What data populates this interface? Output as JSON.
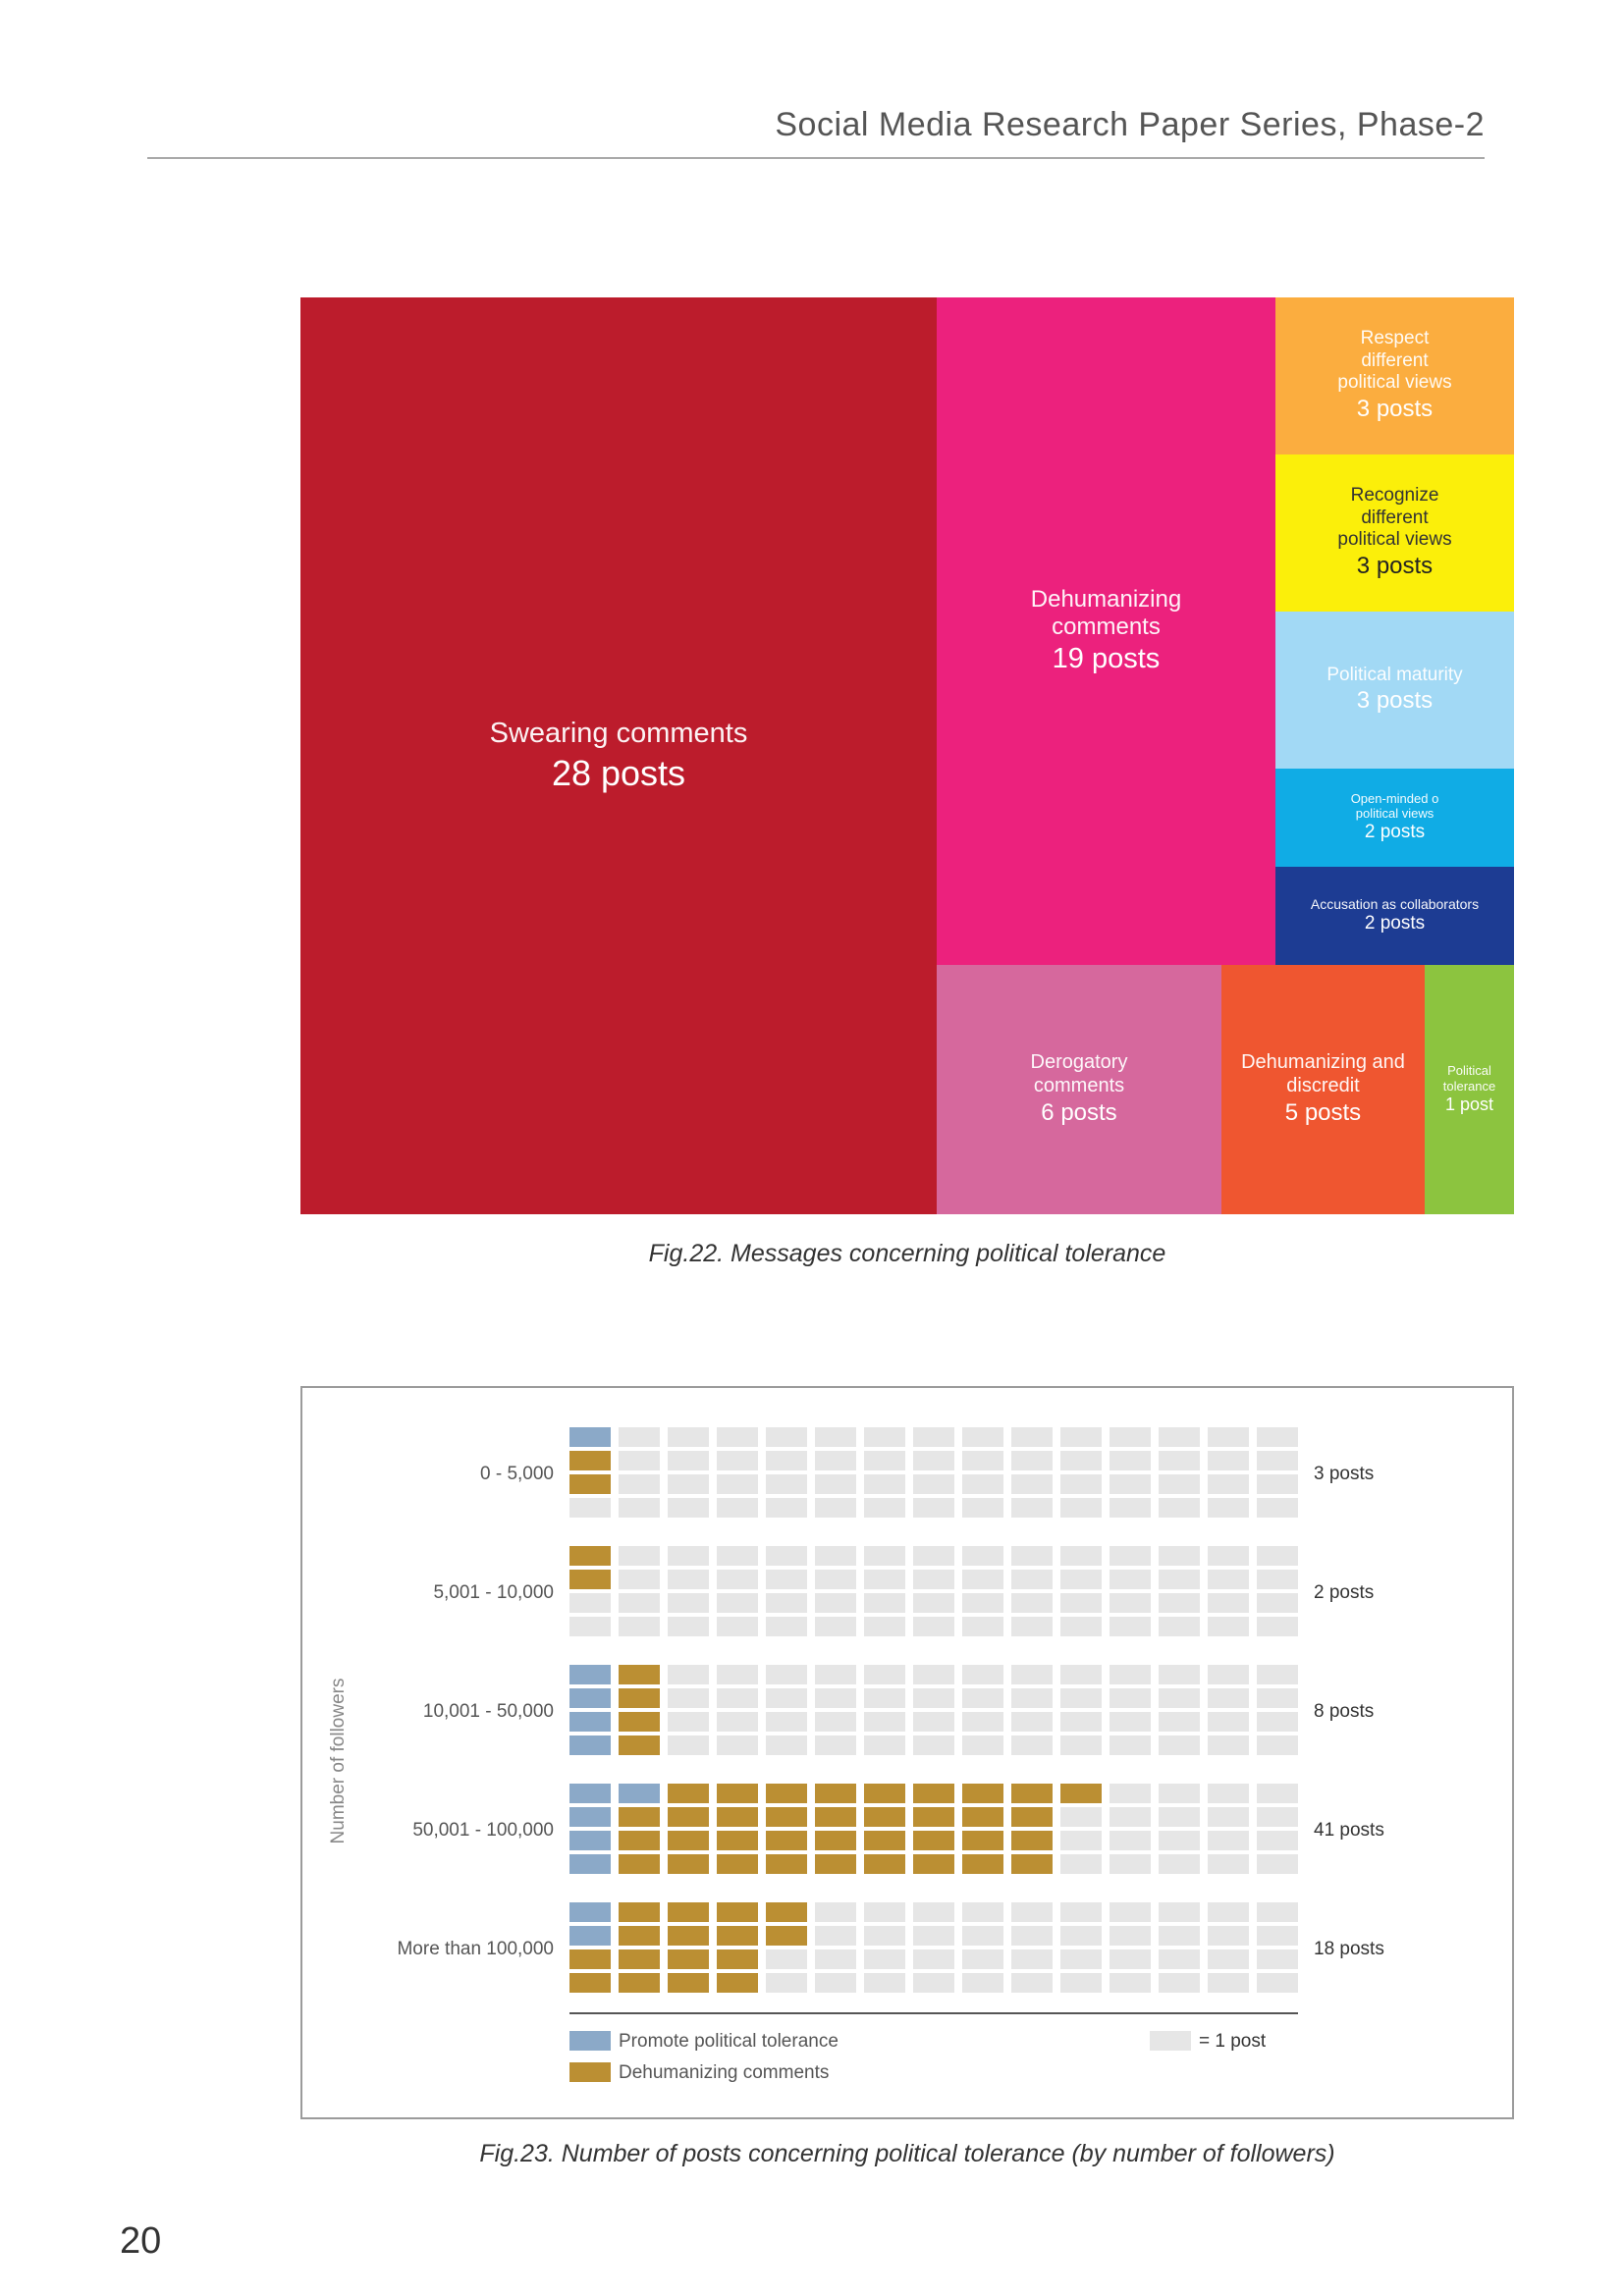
{
  "header": {
    "title": "Social Media Research Paper Series, Phase-2"
  },
  "page_number": "20",
  "colors": {
    "swearing": "#bc1c2c",
    "dehumanizing": "#ec217d",
    "respect": "#fbad3f",
    "recognize": "#fbef0a",
    "maturity": "#a2d9f5",
    "open_minded": "#10ace5",
    "accusation": "#1d3c93",
    "derogatory": "#d6689d",
    "dehumanizing_discredit": "#ef5630",
    "tolerance": "#8cc43f",
    "promote": "#8ba9c8",
    "dehumanizing_comments": "#bb8f33",
    "empty": "#e6e6e6"
  },
  "chart_data": [
    {
      "type": "treemap",
      "caption": "Fig.22. Messages concerning political tolerance",
      "items": [
        {
          "id": "swearing",
          "label": "Swearing comments",
          "value": 28,
          "value_label": "28 posts"
        },
        {
          "id": "dehumanizing",
          "label": "Dehumanizing comments",
          "value": 19,
          "value_label": "19 posts"
        },
        {
          "id": "respect",
          "label": "Respect different political views",
          "value": 3,
          "value_label": "3 posts"
        },
        {
          "id": "recognize",
          "label": "Recognize different political views",
          "value": 3,
          "value_label": "3 posts"
        },
        {
          "id": "maturity",
          "label": "Political maturity",
          "value": 3,
          "value_label": "3 posts"
        },
        {
          "id": "open_minded",
          "label": "Open-minded o political views",
          "value": 2,
          "value_label": "2 posts"
        },
        {
          "id": "accusation",
          "label": "Accusation as collaborators",
          "value": 2,
          "value_label": "2 posts"
        },
        {
          "id": "derogatory",
          "label": "Derogatory comments",
          "value": 6,
          "value_label": "6 posts"
        },
        {
          "id": "dehumanizing_discredit",
          "label": "Dehumanizing and discredit",
          "value": 5,
          "value_label": "5 posts"
        },
        {
          "id": "tolerance",
          "label": "Political tolerance",
          "value": 1,
          "value_label": "1 post"
        }
      ]
    },
    {
      "type": "waffle",
      "caption": "Fig.23. Number of posts concerning political tolerance (by number of followers)",
      "ylabel": "Number of followers",
      "unit_label": "= 1 post",
      "legend": [
        {
          "key": "promote",
          "label": "Promote political tolerance"
        },
        {
          "key": "dehumanizing",
          "label": "Dehumanizing comments"
        }
      ],
      "rows": [
        {
          "category": "0 - 5,000",
          "promote": 1,
          "dehumanizing": 2,
          "total_label": "3 posts"
        },
        {
          "category": "5,001 - 10,000",
          "promote": 0,
          "dehumanizing": 2,
          "total_label": "2 posts"
        },
        {
          "category": "10,001 - 50,000",
          "promote": 4,
          "dehumanizing": 4,
          "total_label": "8 posts"
        },
        {
          "category": "50,001 - 100,000",
          "promote": 5,
          "dehumanizing": 36,
          "total_label": "41 posts"
        },
        {
          "category": "More than 100,000",
          "promote": 2,
          "dehumanizing": 16,
          "total_label": "18 posts"
        }
      ]
    }
  ]
}
